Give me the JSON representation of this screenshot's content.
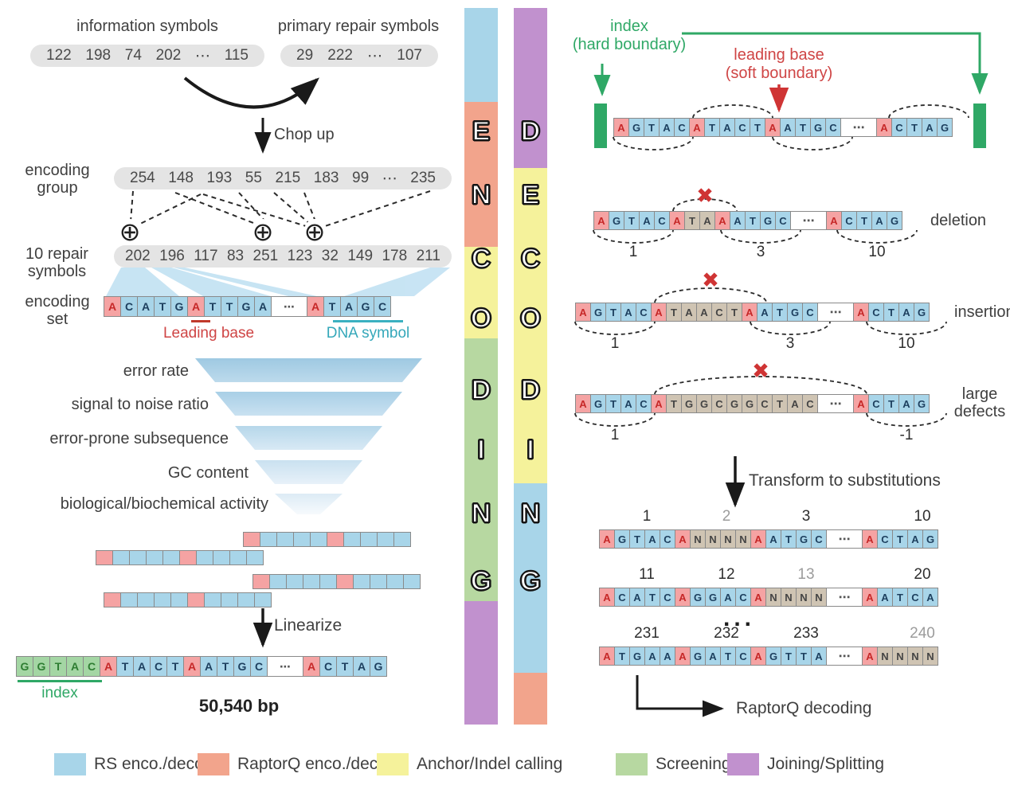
{
  "palette": {
    "blue": "#a8d5e9",
    "salmon": "#f2a48c",
    "yellow": "#f5f29b",
    "green": "#b7d8a1",
    "purple": "#c191ce",
    "index_green": "#2fa866",
    "red": "#cf3434"
  },
  "left": {
    "info_symbols_label": "information symbols",
    "primary_repair_label": "primary repair symbols",
    "info_values": [
      "122",
      "198",
      "74",
      "202",
      "⋯",
      "115"
    ],
    "primary_repair_values": [
      "29",
      "222",
      "⋯",
      "107"
    ],
    "chop_up_label": "Chop up",
    "encoding_group_label": [
      "encoding",
      "group"
    ],
    "encoding_group_values": [
      "254",
      "148",
      "193",
      "55",
      "215",
      "183",
      "99",
      "⋯",
      "235"
    ],
    "repair_symbols_label": [
      "10 repair",
      "symbols"
    ],
    "repair_symbols_values": [
      "202",
      "196",
      "117",
      "83",
      "251",
      "123",
      "32",
      "149",
      "178",
      "211"
    ],
    "xor_symbol": "⊕",
    "encoding_set_label": [
      "encoding",
      "set"
    ],
    "encoding_set_strand": "rA bC bA bT bG rA bT bT bG bA w⋯ rA bT bA bG bC",
    "leading_base_label": "Leading base",
    "dna_symbol_label": "DNA symbol",
    "funnel_labels": [
      "error rate",
      "signal to noise ratio",
      "error-prone subsequence",
      "GC content",
      "biological/biochemical activity"
    ],
    "stagger_strand": "r b b b b r b b b b",
    "linearize_label": "Linearize",
    "linearized_strand": "gG gG gT gA gC rA bT bA bC bT rA bA bT bG bC w⋯ rA bC bT bA bG",
    "index_label": "index",
    "total_length_label": "50,540 bp"
  },
  "bars": {
    "encoding_letters": [
      "E",
      "N",
      "C",
      "O",
      "D",
      "I",
      "N",
      "G"
    ],
    "decoding_letters": [
      "D",
      "E",
      "C",
      "O",
      "D",
      "I",
      "N",
      "G"
    ]
  },
  "right": {
    "index_hard_label": [
      "index",
      "(hard boundary)"
    ],
    "leading_soft_label": [
      "leading base",
      "(soft boundary)"
    ],
    "reference_strand": "rA bG bT bA bC rA bT bA bC bT rA bA bT bG bC w⋯ rA bC bT bA bG",
    "deletion": {
      "strand": "rA bG bT bA bC rA tT tA rA bA bT bG bC w⋯ rA bC bT bA bG",
      "label": "deletion",
      "nums": [
        "1",
        "3",
        "10"
      ]
    },
    "insertion": {
      "strand": "rA bG bT bA bC rA tT tA tA tC tT rA bA bT bG bC w⋯ rA bC bT bA bG",
      "label": "insertion",
      "nums": [
        "1",
        "3",
        "10"
      ]
    },
    "large_defects": {
      "strand": "rA bG bT bA bC rA tT tG tG tC tG tG tC tT tA tC w⋯ rA bC bT bA bG",
      "label": [
        "large",
        "defects"
      ],
      "nums": [
        "1",
        "-1"
      ]
    },
    "transform_label": "Transform to substitutions",
    "sub_rows": [
      {
        "nums": [
          "1",
          "2",
          "3",
          "10"
        ],
        "gray_index": 1,
        "strand": "rA bG bT bA bC rA tN tN tN tN rA bA bT bG bC w⋯ rA bC bT bA bG"
      },
      {
        "nums": [
          "11",
          "12",
          "13",
          "20"
        ],
        "gray_index": 2,
        "strand": "rA bC bA bT bC rA bG bG bA bC rA tN tN tN tN w⋯ rA bA bT bC bA"
      },
      {
        "nums": [
          "231",
          "232",
          "233",
          "240"
        ],
        "gray_index": 3,
        "strand": "rA bT bG bA bA rA bG bA bT bC rA bG bT bT bA w⋯ rA tN tN tN tN"
      }
    ],
    "ellipsis_vertical": "...",
    "raptorq_label": "RaptorQ decoding"
  },
  "legend": [
    {
      "label": "RS enco./deco.",
      "color": "#a8d5e9"
    },
    {
      "label": "RaptorQ enco./deco.",
      "color": "#f2a48c"
    },
    {
      "label": "Anchor/Indel calling",
      "color": "#f5f29b"
    },
    {
      "label": "Screening",
      "color": "#b7d8a1"
    },
    {
      "label": "Joining/Splitting",
      "color": "#c191ce"
    }
  ]
}
